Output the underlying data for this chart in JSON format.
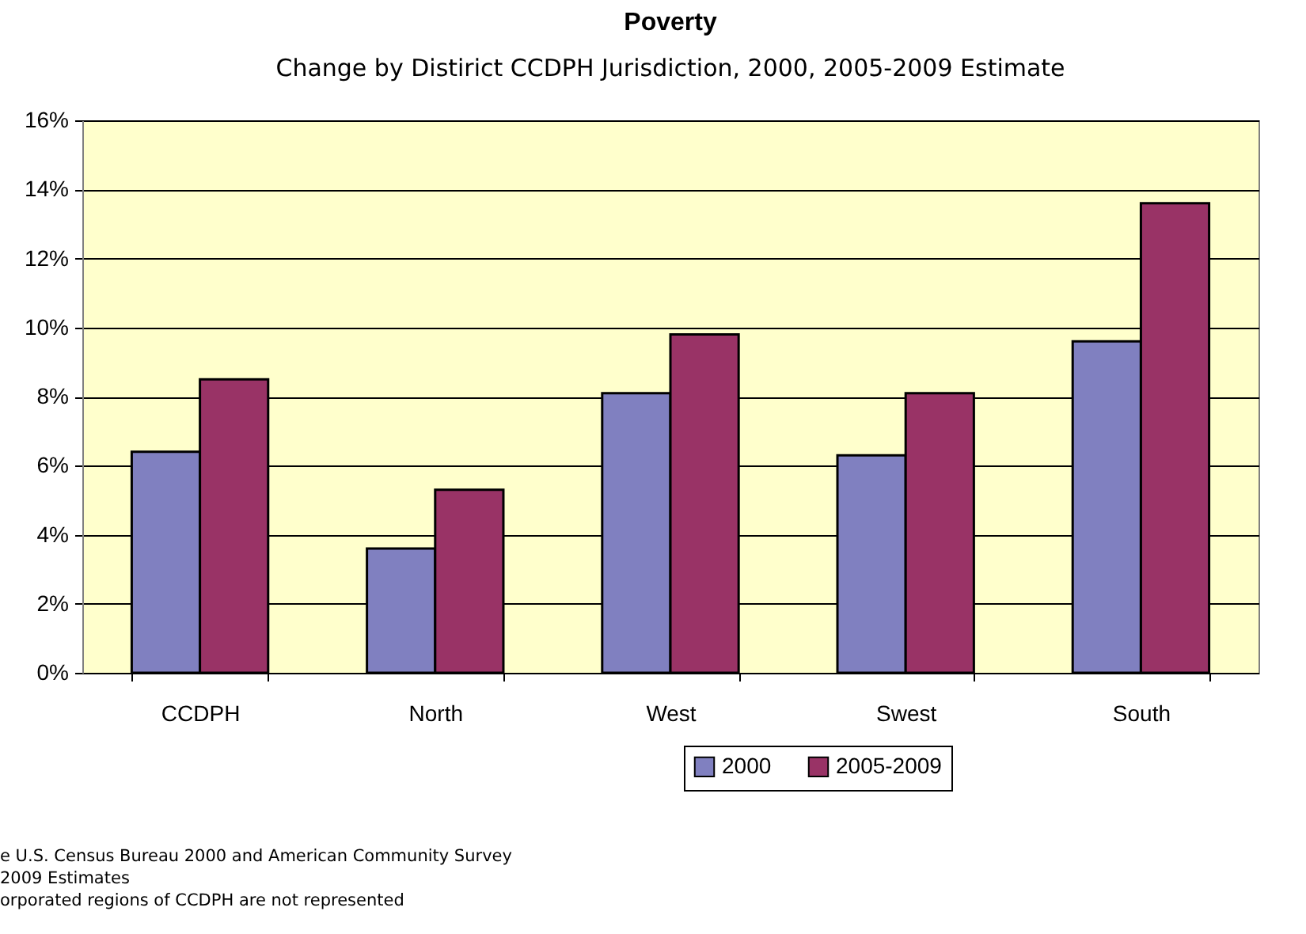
{
  "chart_data": {
    "type": "bar",
    "title": "Poverty",
    "subtitle": "Change by Distirict CCDPH Jurisdiction, 2000, 2005-2009 Estimate",
    "categories": [
      "CCDPH",
      "North",
      "West",
      "Swest",
      "South"
    ],
    "series": [
      {
        "name": "2000",
        "color": "#8080c0",
        "values": [
          0.064,
          0.036,
          0.081,
          0.063,
          0.096
        ]
      },
      {
        "name": "2005-2009",
        "color": "#993366",
        "values": [
          0.085,
          0.053,
          0.098,
          0.081,
          0.136
        ]
      }
    ],
    "ylim": [
      0,
      0.16
    ],
    "yticks": [
      {
        "value": 0,
        "label": "0%"
      },
      {
        "value": 0.02,
        "label": "2%"
      },
      {
        "value": 0.04,
        "label": "4%"
      },
      {
        "value": 0.06,
        "label": "6%"
      },
      {
        "value": 0.08,
        "label": "8%"
      },
      {
        "value": 0.1,
        "label": "10%"
      },
      {
        "value": 0.12,
        "label": "12%"
      },
      {
        "value": 0.14,
        "label": "14%"
      },
      {
        "value": 0.16,
        "label": "16%"
      }
    ],
    "grid": "y",
    "legend": "bottom right",
    "annotations": [
      "e U.S. Census Bureau 2000 and American Community Survey",
      "2009 Estimates",
      "orporated regions of CCDPH are not represented"
    ]
  }
}
